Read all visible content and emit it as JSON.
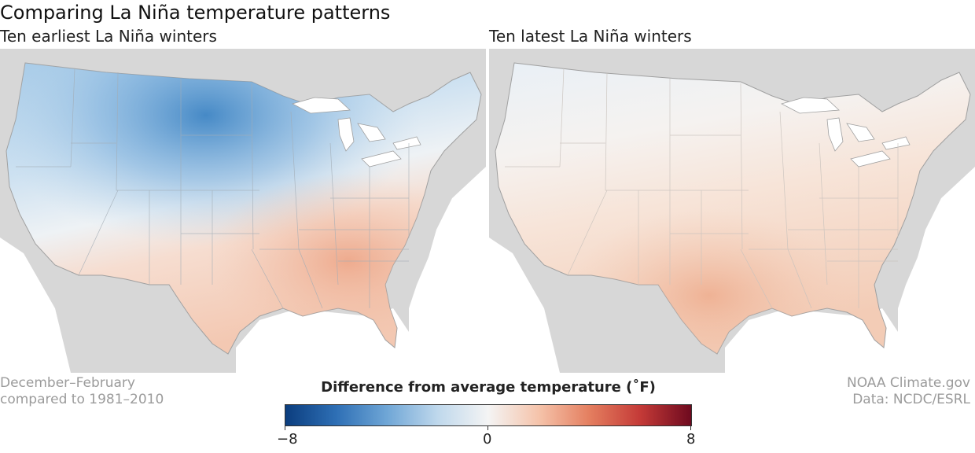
{
  "title": "Comparing La Niña temperature patterns",
  "panels": [
    {
      "title": "Ten earliest La Niña winters"
    },
    {
      "title": "Ten latest La Niña winters"
    }
  ],
  "footnote_left": [
    "December–February",
    "compared to 1981–2010"
  ],
  "footnote_right": [
    "NOAA Climate.gov",
    "Data: NCDC/ESRL"
  ],
  "legend": {
    "title": "Difference from average temperature (˚F)",
    "min_label": "−8",
    "mid_label": "0",
    "max_label": "8",
    "min": -8,
    "max": 8,
    "colors": [
      "#0b3d7e",
      "#2e6fb5",
      "#6fa6d6",
      "#bfd8ec",
      "#f4f4f4",
      "#f5c3aa",
      "#e47e5f",
      "#c43a37",
      "#6e0a1f"
    ]
  },
  "colors": {
    "land_bg": "#d7d7d7",
    "border": "#a0a0a0",
    "water": "#ffffff"
  }
}
